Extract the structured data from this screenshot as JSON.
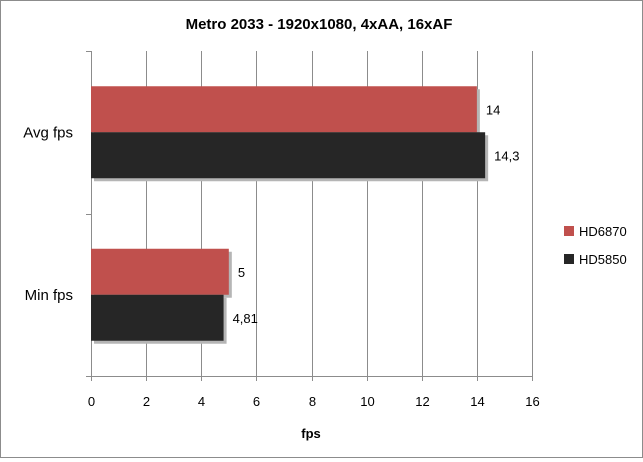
{
  "chart_data": {
    "type": "bar",
    "orientation": "horizontal",
    "title": "Metro 2033 - 1920x1080, 4xAA, 16xAF",
    "xlabel": "fps",
    "ylabel": "",
    "categories": [
      "Avg fps",
      "Min fps"
    ],
    "series": [
      {
        "name": "HD6870",
        "color": "#c0504d",
        "values": [
          14,
          5
        ],
        "labels": [
          "14",
          "5"
        ]
      },
      {
        "name": "HD5850",
        "color": "#262626",
        "values": [
          14.3,
          4.81
        ],
        "labels": [
          "14,3",
          "4,81"
        ]
      }
    ],
    "xlim": [
      0,
      16
    ],
    "xticks": [
      0,
      2,
      4,
      6,
      8,
      10,
      12,
      14,
      16
    ],
    "grid": true,
    "legend_position": "right"
  }
}
